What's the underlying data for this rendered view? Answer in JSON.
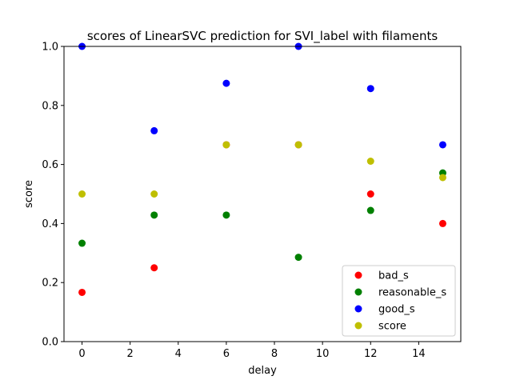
{
  "chart_data": {
    "type": "scatter",
    "title": "scores of LinearSVC prediction for SVI_label with filaments",
    "xlabel": "delay",
    "ylabel": "score",
    "xlim": [
      -0.75,
      15.75
    ],
    "ylim": [
      0.0,
      1.0
    ],
    "x_ticks": [
      0,
      2,
      4,
      6,
      8,
      10,
      12,
      14
    ],
    "x_tick_labels": [
      "0",
      "2",
      "4",
      "6",
      "8",
      "10",
      "12",
      "14"
    ],
    "y_ticks": [
      0.0,
      0.2,
      0.4,
      0.6,
      0.8,
      1.0
    ],
    "y_tick_labels": [
      "0.0",
      "0.2",
      "0.4",
      "0.6",
      "0.8",
      "1.0"
    ],
    "grid": false,
    "legend_position": "lower-right",
    "x": [
      0,
      3,
      6,
      9,
      12,
      15
    ],
    "series": [
      {
        "name": "bad_s",
        "color": "#ff0000",
        "values": [
          0.1667,
          0.25,
          0.6667,
          0.6667,
          0.5,
          0.4
        ]
      },
      {
        "name": "reasonable_s",
        "color": "#008000",
        "values": [
          0.3333,
          0.4286,
          0.4286,
          0.2857,
          0.4444,
          0.5714
        ]
      },
      {
        "name": "good_s",
        "color": "#0000ff",
        "values": [
          1.0,
          0.7143,
          0.875,
          1.0,
          0.8571,
          0.6667
        ]
      },
      {
        "name": "score",
        "color": "#bfbf00",
        "values": [
          0.5,
          0.5,
          0.6667,
          0.6667,
          0.6111,
          0.5556
        ]
      }
    ]
  }
}
